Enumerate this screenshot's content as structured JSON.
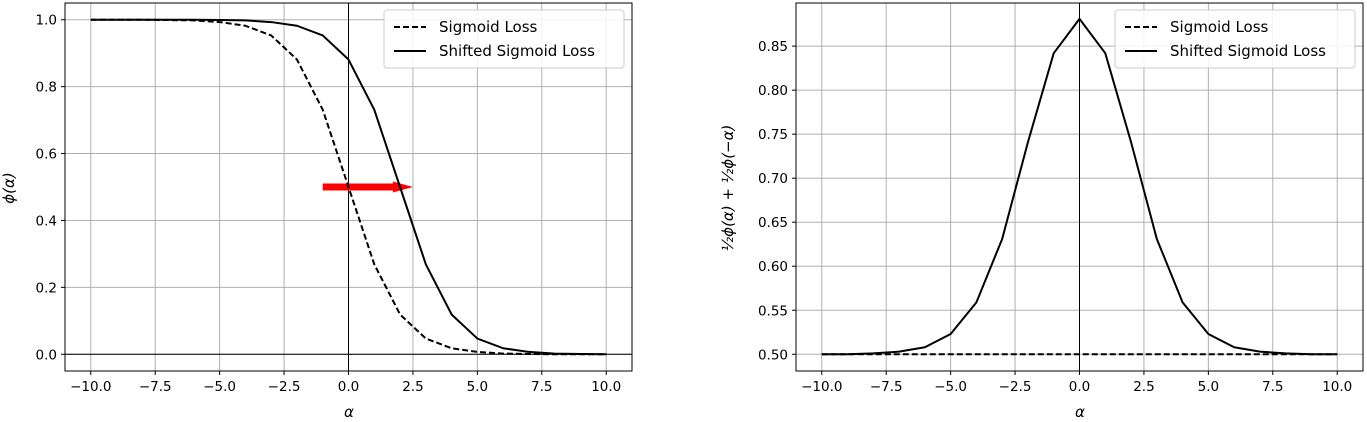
{
  "chart_data": [
    {
      "type": "line",
      "xlabel": "α",
      "ylabel": "ϕ(α)",
      "xlim": [
        -11,
        11
      ],
      "ylim": [
        -0.05,
        1.05
      ],
      "xticks": [
        -10,
        -7.5,
        -5,
        -2.5,
        0,
        2.5,
        5,
        7.5,
        10
      ],
      "xtick_labels": [
        "−10.0",
        "−7.5",
        "−5.0",
        "−2.5",
        "0.0",
        "2.5",
        "5.0",
        "7.5",
        "10.0"
      ],
      "yticks": [
        0,
        0.2,
        0.4,
        0.6,
        0.8,
        1.0
      ],
      "ytick_labels": [
        "0.0",
        "0.2",
        "0.4",
        "0.6",
        "0.8",
        "1.0"
      ],
      "grid": true,
      "legend_position": "top-right",
      "reference_lines": {
        "vertical_x": 0,
        "horizontal_y": 0
      },
      "arrow": {
        "from": [
          -1,
          0.5
        ],
        "to": [
          2.5,
          0.5
        ],
        "color": "#ff0000"
      },
      "x": [
        -10,
        -9,
        -8,
        -7,
        -6,
        -5,
        -4,
        -3,
        -2,
        -1,
        0,
        1,
        2,
        3,
        4,
        5,
        6,
        7,
        8,
        9,
        10
      ],
      "series": [
        {
          "name": "Sigmoid Loss",
          "style": "dashed",
          "color": "#000000",
          "values": [
            1.0,
            1.0,
            1.0,
            0.999,
            0.998,
            0.993,
            0.982,
            0.953,
            0.881,
            0.731,
            0.5,
            0.269,
            0.119,
            0.047,
            0.018,
            0.007,
            0.002,
            0.001,
            0.0,
            0.0,
            0.0
          ]
        },
        {
          "name": "Shifted Sigmoid Loss",
          "style": "solid",
          "color": "#000000",
          "values": [
            1.0,
            1.0,
            1.0,
            1.0,
            1.0,
            0.999,
            0.998,
            0.993,
            0.982,
            0.953,
            0.881,
            0.731,
            0.5,
            0.269,
            0.119,
            0.047,
            0.018,
            0.007,
            0.002,
            0.001,
            0.0
          ]
        }
      ]
    },
    {
      "type": "line",
      "xlabel": "α",
      "ylabel": "½ϕ(α) + ½ϕ(−α)",
      "xlim": [
        -11,
        11
      ],
      "ylim": [
        0.481,
        0.899
      ],
      "xticks": [
        -10,
        -7.5,
        -5,
        -2.5,
        0,
        2.5,
        5,
        7.5,
        10
      ],
      "xtick_labels": [
        "−10.0",
        "−7.5",
        "−5.0",
        "−2.5",
        "0.0",
        "2.5",
        "5.0",
        "7.5",
        "10.0"
      ],
      "yticks": [
        0.5,
        0.55,
        0.6,
        0.65,
        0.7,
        0.75,
        0.8,
        0.85
      ],
      "ytick_labels": [
        "0.50",
        "0.55",
        "0.60",
        "0.65",
        "0.70",
        "0.75",
        "0.80",
        "0.85"
      ],
      "grid": true,
      "legend_position": "top-right",
      "reference_lines": {
        "vertical_x": 0
      },
      "x": [
        -10,
        -9,
        -8,
        -7,
        -6,
        -5,
        -4,
        -3,
        -2,
        -1,
        0,
        1,
        2,
        3,
        4,
        5,
        6,
        7,
        8,
        9,
        10
      ],
      "series": [
        {
          "name": "Sigmoid Loss",
          "style": "dashed",
          "color": "#000000",
          "values": [
            0.5,
            0.5,
            0.5,
            0.5,
            0.5,
            0.5,
            0.5,
            0.5,
            0.5,
            0.5,
            0.5,
            0.5,
            0.5,
            0.5,
            0.5,
            0.5,
            0.5,
            0.5,
            0.5,
            0.5,
            0.5
          ]
        },
        {
          "name": "Shifted Sigmoid Loss",
          "style": "solid",
          "color": "#000000",
          "values": [
            0.5,
            0.5,
            0.501,
            0.503,
            0.508,
            0.523,
            0.559,
            0.631,
            0.741,
            0.842,
            0.881,
            0.842,
            0.741,
            0.631,
            0.559,
            0.523,
            0.508,
            0.503,
            0.501,
            0.5,
            0.5
          ]
        }
      ]
    }
  ]
}
